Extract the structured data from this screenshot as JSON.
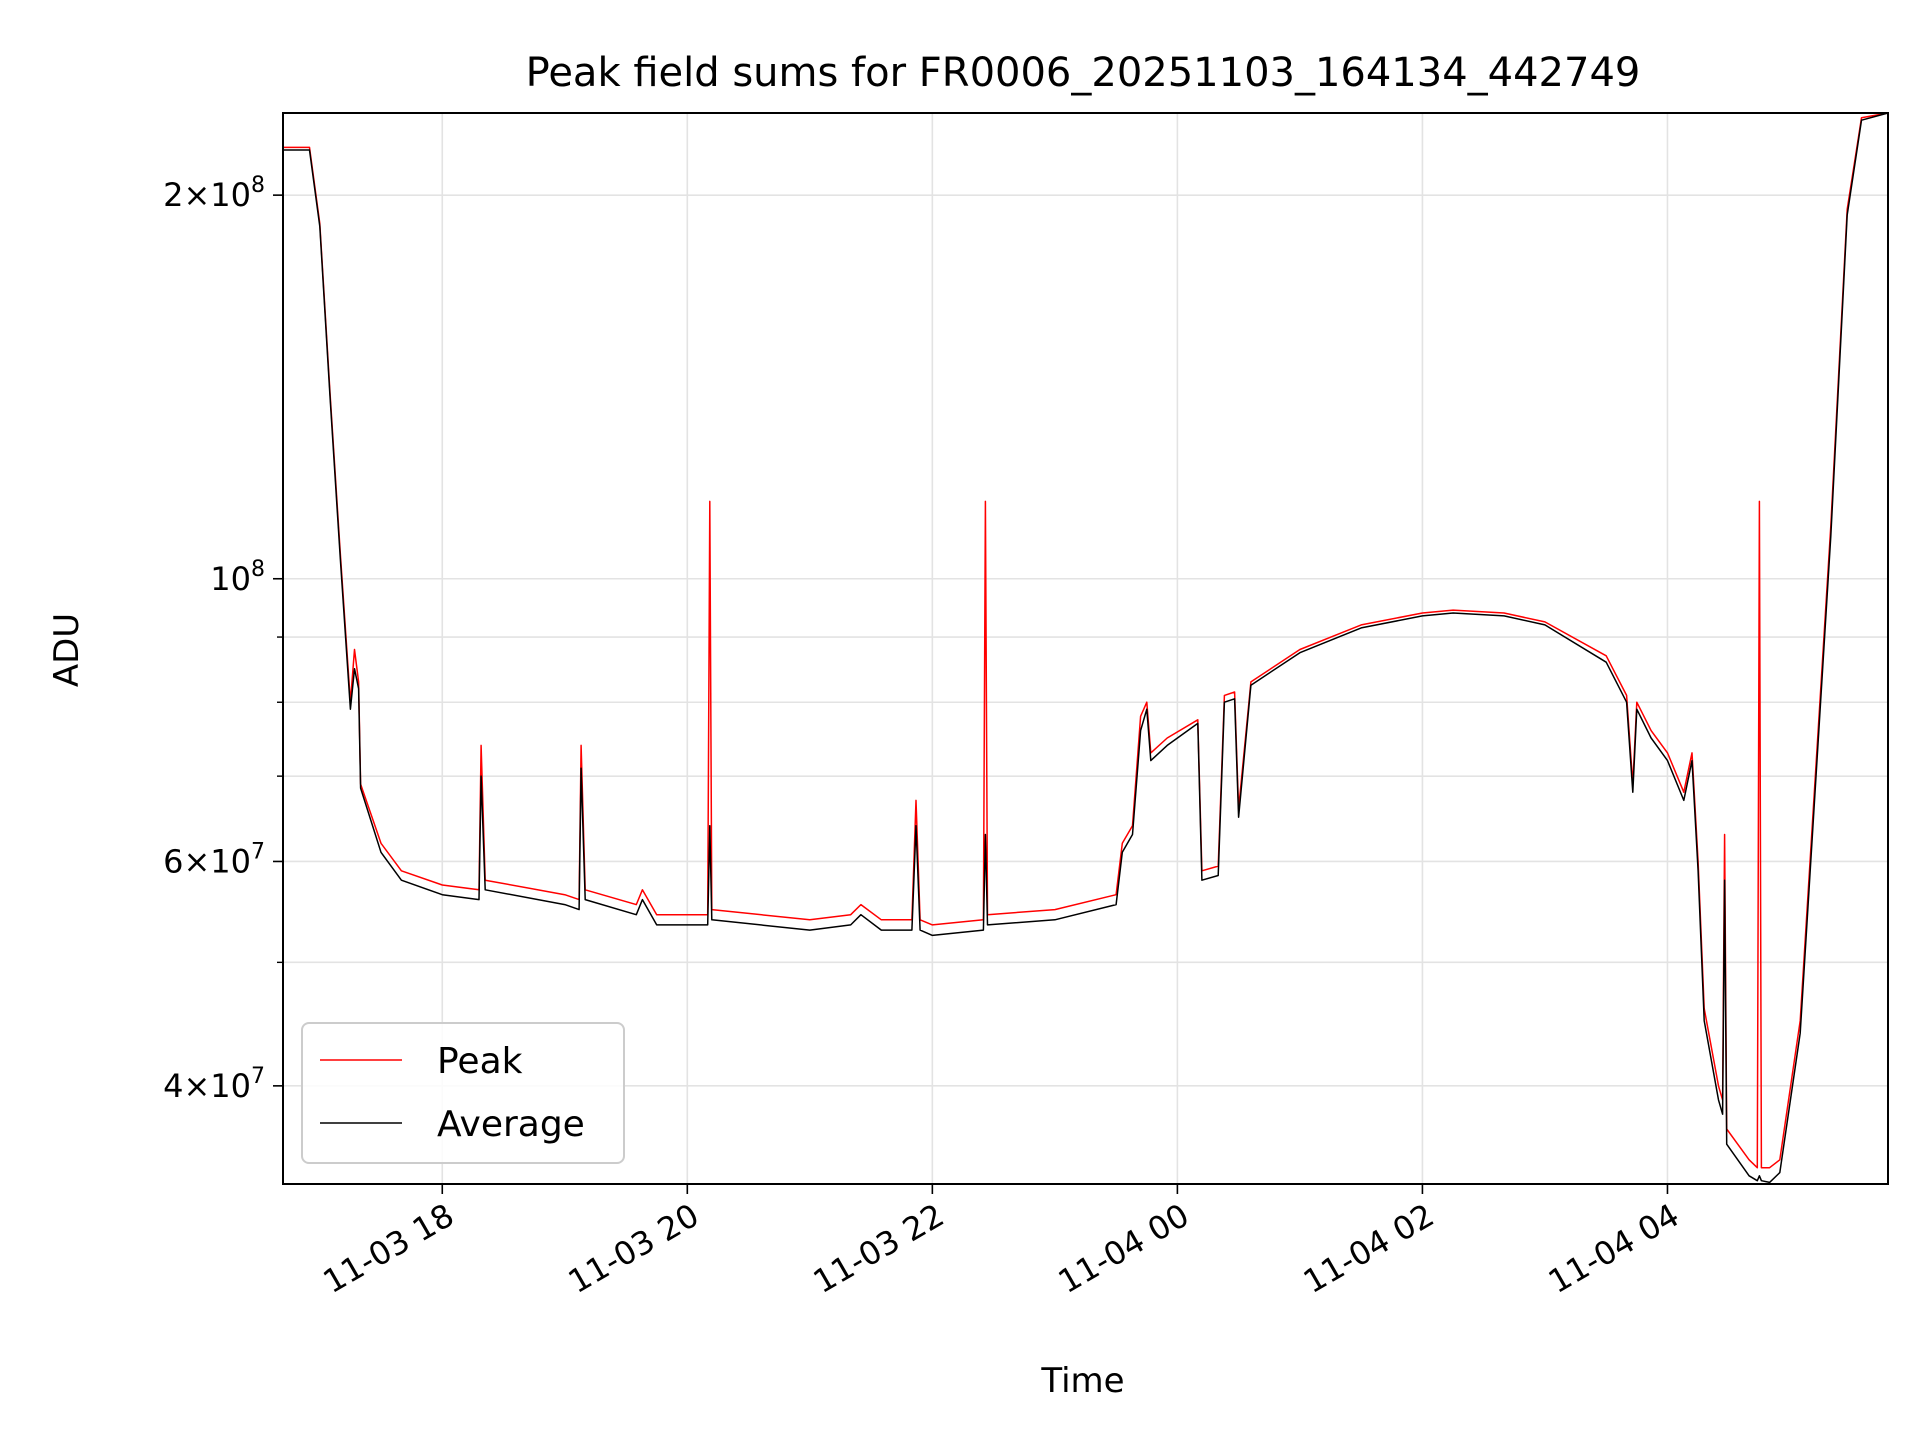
{
  "chart_data": {
    "type": "line",
    "title": "Peak field sums for FR0006_20251103_164134_442749",
    "xlabel": "Time",
    "ylabel": "ADU",
    "xlim": [
      "2025-11-03 16:42",
      "2025-11-04 05:48"
    ],
    "ylim": [
      33500000,
      232000000
    ],
    "yscale": "log",
    "grid": true,
    "legend_position": "lower-left",
    "x_ticks": [
      "11-03 18",
      "11-03 20",
      "11-03 22",
      "11-04 00",
      "11-04 02",
      "11-04 04"
    ],
    "x_tick_times": [
      "2025-11-03 18:00",
      "2025-11-03 20:00",
      "2025-11-03 22:00",
      "2025-11-04 00:00",
      "2025-11-04 02:00",
      "2025-11-04 04:00"
    ],
    "y_ticks": [
      {
        "value": 200000000,
        "mantissa": "2",
        "exp": "8"
      },
      {
        "value": 100000000,
        "mantissa": "",
        "exp": "8"
      },
      {
        "value": 60000000,
        "mantissa": "6",
        "exp": "7"
      },
      {
        "value": 40000000,
        "mantissa": "4",
        "exp": "7"
      }
    ],
    "y_minor_ticks": [
      90000000,
      80000000,
      70000000,
      50000000
    ],
    "series": [
      {
        "name": "Peak",
        "color": "#ff0000",
        "points": [
          [
            "2025-11-03 16:42",
            218000000
          ],
          [
            "2025-11-03 16:55",
            218000000
          ],
          [
            "2025-11-03 17:00",
            190000000
          ],
          [
            "2025-11-03 17:05",
            140000000
          ],
          [
            "2025-11-03 17:10",
            105000000
          ],
          [
            "2025-11-03 17:15",
            80000000
          ],
          [
            "2025-11-03 17:17",
            88000000
          ],
          [
            "2025-11-03 17:19",
            83000000
          ],
          [
            "2025-11-03 17:20",
            69000000
          ],
          [
            "2025-11-03 17:30",
            62000000
          ],
          [
            "2025-11-03 17:40",
            59000000
          ],
          [
            "2025-11-03 18:00",
            57500000
          ],
          [
            "2025-11-03 18:18",
            57000000
          ],
          [
            "2025-11-03 18:19",
            74000000
          ],
          [
            "2025-11-03 18:21",
            58000000
          ],
          [
            "2025-11-03 19:00",
            56500000
          ],
          [
            "2025-11-03 19:07",
            56000000
          ],
          [
            "2025-11-03 19:08",
            74000000
          ],
          [
            "2025-11-03 19:10",
            57000000
          ],
          [
            "2025-11-03 19:35",
            55500000
          ],
          [
            "2025-11-03 19:38",
            57000000
          ],
          [
            "2025-11-03 19:45",
            54500000
          ],
          [
            "2025-11-03 20:10",
            54500000
          ],
          [
            "2025-11-03 20:11",
            115000000
          ],
          [
            "2025-11-03 20:12",
            55000000
          ],
          [
            "2025-11-03 21:00",
            54000000
          ],
          [
            "2025-11-03 21:20",
            54500000
          ],
          [
            "2025-11-03 21:25",
            55500000
          ],
          [
            "2025-11-03 21:35",
            54000000
          ],
          [
            "2025-11-03 21:50",
            54000000
          ],
          [
            "2025-11-03 21:52",
            67000000
          ],
          [
            "2025-11-03 21:54",
            54000000
          ],
          [
            "2025-11-03 22:00",
            53500000
          ],
          [
            "2025-11-03 22:25",
            54000000
          ],
          [
            "2025-11-03 22:26",
            115000000
          ],
          [
            "2025-11-03 22:27",
            54500000
          ],
          [
            "2025-11-03 23:00",
            55000000
          ],
          [
            "2025-11-03 23:30",
            56500000
          ],
          [
            "2025-11-03 23:33",
            62000000
          ],
          [
            "2025-11-03 23:38",
            64000000
          ],
          [
            "2025-11-03 23:42",
            78000000
          ],
          [
            "2025-11-03 23:45",
            80000000
          ],
          [
            "2025-11-03 23:47",
            73000000
          ],
          [
            "2025-11-03 23:55",
            75000000
          ],
          [
            "2025-11-04 00:10",
            77500000
          ],
          [
            "2025-11-04 00:12",
            59000000
          ],
          [
            "2025-11-04 00:20",
            59500000
          ],
          [
            "2025-11-04 00:23",
            81000000
          ],
          [
            "2025-11-04 00:28",
            81500000
          ],
          [
            "2025-11-04 00:30",
            66000000
          ],
          [
            "2025-11-04 00:36",
            83000000
          ],
          [
            "2025-11-04 01:00",
            88000000
          ],
          [
            "2025-11-04 01:30",
            92000000
          ],
          [
            "2025-11-04 02:00",
            94000000
          ],
          [
            "2025-11-04 02:15",
            94500000
          ],
          [
            "2025-11-04 02:40",
            94000000
          ],
          [
            "2025-11-04 03:00",
            92500000
          ],
          [
            "2025-11-04 03:30",
            87000000
          ],
          [
            "2025-11-04 03:40",
            81000000
          ],
          [
            "2025-11-04 03:43",
            69000000
          ],
          [
            "2025-11-04 03:45",
            80000000
          ],
          [
            "2025-11-04 03:52",
            76000000
          ],
          [
            "2025-11-04 04:00",
            73000000
          ],
          [
            "2025-11-04 04:08",
            68000000
          ],
          [
            "2025-11-04 04:12",
            73000000
          ],
          [
            "2025-11-04 04:15",
            60000000
          ],
          [
            "2025-11-04 04:18",
            46000000
          ],
          [
            "2025-11-04 04:25",
            40000000
          ],
          [
            "2025-11-04 04:27",
            39000000
          ],
          [
            "2025-11-04 04:28",
            63000000
          ],
          [
            "2025-11-04 04:29",
            37000000
          ],
          [
            "2025-11-04 04:40",
            35000000
          ],
          [
            "2025-11-04 04:44",
            34500000
          ],
          [
            "2025-11-04 04:45",
            115000000
          ],
          [
            "2025-11-04 04:46",
            34500000
          ],
          [
            "2025-11-04 04:50",
            34500000
          ],
          [
            "2025-11-04 04:55",
            35000000
          ],
          [
            "2025-11-04 05:05",
            45000000
          ],
          [
            "2025-11-04 05:20",
            110000000
          ],
          [
            "2025-11-04 05:28",
            195000000
          ],
          [
            "2025-11-04 05:35",
            230000000
          ],
          [
            "2025-11-04 05:48",
            232000000
          ]
        ]
      },
      {
        "name": "Average",
        "color": "#000000",
        "points": [
          [
            "2025-11-03 16:42",
            217000000
          ],
          [
            "2025-11-03 16:55",
            217000000
          ],
          [
            "2025-11-03 17:00",
            189000000
          ],
          [
            "2025-11-03 17:05",
            139000000
          ],
          [
            "2025-11-03 17:10",
            104000000
          ],
          [
            "2025-11-03 17:15",
            79000000
          ],
          [
            "2025-11-03 17:17",
            85000000
          ],
          [
            "2025-11-03 17:19",
            82000000
          ],
          [
            "2025-11-03 17:20",
            68500000
          ],
          [
            "2025-11-03 17:30",
            61000000
          ],
          [
            "2025-11-03 17:40",
            58000000
          ],
          [
            "2025-11-03 18:00",
            56500000
          ],
          [
            "2025-11-03 18:18",
            56000000
          ],
          [
            "2025-11-03 18:19",
            70000000
          ],
          [
            "2025-11-03 18:21",
            57000000
          ],
          [
            "2025-11-03 19:00",
            55500000
          ],
          [
            "2025-11-03 19:07",
            55000000
          ],
          [
            "2025-11-03 19:08",
            71000000
          ],
          [
            "2025-11-03 19:10",
            56000000
          ],
          [
            "2025-11-03 19:35",
            54500000
          ],
          [
            "2025-11-03 19:38",
            56000000
          ],
          [
            "2025-11-03 19:45",
            53500000
          ],
          [
            "2025-11-03 20:10",
            53500000
          ],
          [
            "2025-11-03 20:11",
            64000000
          ],
          [
            "2025-11-03 20:12",
            54000000
          ],
          [
            "2025-11-03 21:00",
            53000000
          ],
          [
            "2025-11-03 21:20",
            53500000
          ],
          [
            "2025-11-03 21:25",
            54500000
          ],
          [
            "2025-11-03 21:35",
            53000000
          ],
          [
            "2025-11-03 21:50",
            53000000
          ],
          [
            "2025-11-03 21:52",
            64000000
          ],
          [
            "2025-11-03 21:54",
            53000000
          ],
          [
            "2025-11-03 22:00",
            52500000
          ],
          [
            "2025-11-03 22:25",
            53000000
          ],
          [
            "2025-11-03 22:26",
            63000000
          ],
          [
            "2025-11-03 22:27",
            53500000
          ],
          [
            "2025-11-03 23:00",
            54000000
          ],
          [
            "2025-11-03 23:30",
            55500000
          ],
          [
            "2025-11-03 23:33",
            61000000
          ],
          [
            "2025-11-03 23:38",
            63000000
          ],
          [
            "2025-11-03 23:42",
            76000000
          ],
          [
            "2025-11-03 23:45",
            79000000
          ],
          [
            "2025-11-03 23:47",
            72000000
          ],
          [
            "2025-11-03 23:55",
            74000000
          ],
          [
            "2025-11-04 00:10",
            77000000
          ],
          [
            "2025-11-04 00:12",
            58000000
          ],
          [
            "2025-11-04 00:20",
            58500000
          ],
          [
            "2025-11-04 00:23",
            80000000
          ],
          [
            "2025-11-04 00:28",
            80500000
          ],
          [
            "2025-11-04 00:30",
            65000000
          ],
          [
            "2025-11-04 00:36",
            82500000
          ],
          [
            "2025-11-04 01:00",
            87500000
          ],
          [
            "2025-11-04 01:30",
            91500000
          ],
          [
            "2025-11-04 02:00",
            93500000
          ],
          [
            "2025-11-04 02:15",
            94000000
          ],
          [
            "2025-11-04 02:40",
            93500000
          ],
          [
            "2025-11-04 03:00",
            92000000
          ],
          [
            "2025-11-04 03:30",
            86000000
          ],
          [
            "2025-11-04 03:40",
            80000000
          ],
          [
            "2025-11-04 03:43",
            68000000
          ],
          [
            "2025-11-04 03:45",
            79000000
          ],
          [
            "2025-11-04 03:52",
            75000000
          ],
          [
            "2025-11-04 04:00",
            72000000
          ],
          [
            "2025-11-04 04:08",
            67000000
          ],
          [
            "2025-11-04 04:12",
            72000000
          ],
          [
            "2025-11-04 04:15",
            59000000
          ],
          [
            "2025-11-04 04:18",
            45000000
          ],
          [
            "2025-11-04 04:25",
            39000000
          ],
          [
            "2025-11-04 04:27",
            38000000
          ],
          [
            "2025-11-04 04:28",
            58000000
          ],
          [
            "2025-11-04 04:29",
            36000000
          ],
          [
            "2025-11-04 04:40",
            34000000
          ],
          [
            "2025-11-04 04:44",
            33700000
          ],
          [
            "2025-11-04 04:45",
            34000000
          ],
          [
            "2025-11-04 04:46",
            33700000
          ],
          [
            "2025-11-04 04:50",
            33600000
          ],
          [
            "2025-11-04 04:55",
            34200000
          ],
          [
            "2025-11-04 05:05",
            44000000
          ],
          [
            "2025-11-04 05:20",
            108000000
          ],
          [
            "2025-11-04 05:28",
            193000000
          ],
          [
            "2025-11-04 05:35",
            229000000
          ],
          [
            "2025-11-04 05:48",
            232000000
          ]
        ]
      }
    ]
  }
}
